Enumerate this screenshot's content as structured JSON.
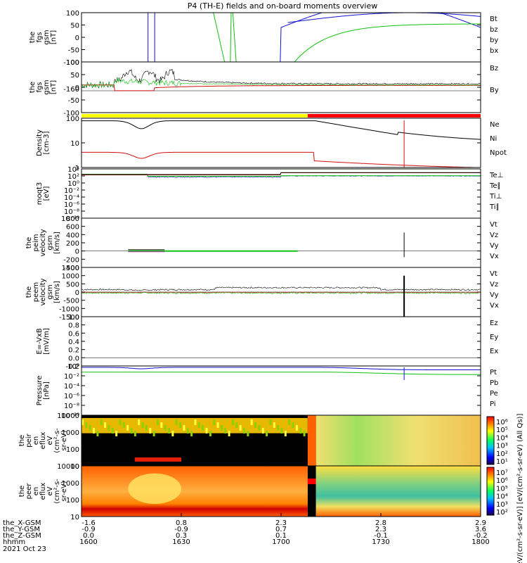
{
  "chart_data": {
    "type": "line",
    "title": "P4 (TH-E) fields and on-board moments overview",
    "x": {
      "rows": [
        {
          "name": "the_X-GSM",
          "values": [
            "-1.6",
            "0.8",
            "2.3",
            "2.8",
            "2.9"
          ]
        },
        {
          "name": "the_Y-GSM",
          "values": [
            "-0.9",
            "-0.9",
            "0.7",
            "2.3",
            "3.6"
          ]
        },
        {
          "name": "the_Z-GSM",
          "values": [
            "0.0",
            "0.3",
            "0.1",
            "-0.1",
            "-0.2"
          ]
        },
        {
          "name": "hhmm",
          "values": [
            "1600",
            "1630",
            "1700",
            "1730",
            "1800"
          ]
        }
      ],
      "date": "2021 Oct 23",
      "range_minutes": [
        0,
        120
      ]
    },
    "colors": {
      "black": "#000000",
      "red": "#d01010",
      "green": "#10c010",
      "blue": "#1010d0",
      "yellow": "#ffff00"
    },
    "panels": [
      {
        "key": "fgs",
        "ylabel": [
          "the",
          "fgs",
          "gsm",
          "[nT]"
        ],
        "ticks": [
          "100",
          "50",
          "0",
          "-50",
          "-100"
        ],
        "ylim": [
          -100,
          100
        ],
        "legend": [
          {
            "text": "Bt",
            "color": "#000000"
          },
          {
            "text": "bz",
            "color": "#d01010"
          },
          {
            "text": "by",
            "color": "#10c010"
          },
          {
            "text": "bx",
            "color": "#1010d0"
          }
        ]
      },
      {
        "key": "fgs2",
        "ylabel": [
          "the",
          "fgs",
          "gsm",
          "[nT]"
        ],
        "ticks": [
          "100",
          "50",
          "0",
          "-50",
          "-100"
        ],
        "ylim": [
          -120,
          100
        ],
        "overlap_label": "-160",
        "legend": [
          {
            "text": "Bz",
            "color": "#000000"
          },
          {
            "text": "By",
            "color": "#10c010"
          }
        ]
      },
      {
        "key": "density",
        "ylabel": [
          "Density",
          "[cm-3]"
        ],
        "ticks": [
          "100",
          "10",
          "1"
        ],
        "log": true,
        "ylim": [
          0.7,
          200
        ],
        "legend": [
          {
            "text": "Ne",
            "color": "#d01010"
          },
          {
            "text": "Ni",
            "color": "#000000"
          },
          {
            "text": "Npot",
            "color": "#1010d0"
          }
        ]
      },
      {
        "key": "temp",
        "ylabel": [
          "moqt3",
          "[eV]"
        ],
        "ticks": [
          "10⁴",
          "10²",
          "10⁰",
          "10⁻²",
          "10⁻⁴",
          "10⁻⁶",
          "10⁻⁸",
          "10⁻¹⁰"
        ],
        "log": true,
        "legend": [
          {
            "text": "Te⊥",
            "color": "#d01010"
          },
          {
            "text": "Te∥",
            "color": "#000000"
          },
          {
            "text": "Ti⊥",
            "color": "#1010d0"
          },
          {
            "text": "Ti∥",
            "color": "#10c010"
          }
        ]
      },
      {
        "key": "peimvel",
        "ylabel": [
          "the",
          "peim",
          "velocity",
          "gsm",
          "[km/s]"
        ],
        "ticks": [
          "800",
          "600",
          "400",
          "200",
          "0",
          "-200",
          "-400"
        ],
        "ylim": [
          -400,
          800
        ],
        "legend": [
          {
            "text": "Vt",
            "color": "#000000"
          },
          {
            "text": "Vz",
            "color": "#d01010"
          },
          {
            "text": "Vy",
            "color": "#10c010"
          },
          {
            "text": "Vx",
            "color": "#1010d0"
          }
        ]
      },
      {
        "key": "peemvel",
        "ylabel": [
          "the",
          "peem",
          "velocity",
          "gsm",
          "[km/s]"
        ],
        "ticks": [
          "1500",
          "1000",
          "500",
          "0",
          "-500",
          "-1000",
          "-1500"
        ],
        "ylim": [
          -1500,
          1500
        ],
        "legend": [
          {
            "text": "Vt",
            "color": "#000000"
          },
          {
            "text": "Vz",
            "color": "#d01010"
          },
          {
            "text": "Vy",
            "color": "#10c010"
          },
          {
            "text": "Vx",
            "color": "#1010d0"
          }
        ]
      },
      {
        "key": "efield",
        "ylabel": [
          "E=-VxB",
          "[mV/m]"
        ],
        "ticks": [
          "1.0",
          "0.8",
          "0.6",
          "0.4",
          "0.2",
          "0.0",
          "-0.2"
        ],
        "ylim": [
          -0.2,
          1.0
        ],
        "legend": [
          {
            "text": "Ez",
            "color": "#d01010"
          },
          {
            "text": "Ey",
            "color": "#10c010"
          },
          {
            "text": "Ex",
            "color": "#1010d0"
          }
        ]
      },
      {
        "key": "pressure",
        "ylabel": [
          "Pressure",
          "[nPa]"
        ],
        "ticks": [
          "10⁰",
          "10⁻²",
          "10⁻⁴",
          "10⁻⁶",
          "10⁻⁸",
          "10⁻¹⁰"
        ],
        "log": true,
        "legend": [
          {
            "text": "Pt",
            "color": "#000000"
          },
          {
            "text": "Pb",
            "color": "#d01010"
          },
          {
            "text": "Pe",
            "color": "#10c010"
          },
          {
            "text": "Pi",
            "color": "#1010d0"
          }
        ]
      },
      {
        "key": "peir_spec",
        "ylabel": [
          "the",
          "peir",
          "en",
          "eflux",
          "eV",
          "(cm²-s-",
          "sr-eV)"
        ],
        "ticks": [
          "10000",
          "1000",
          "100",
          "10"
        ],
        "log": true,
        "colorbar_ticks": [
          "10⁶",
          "10⁵",
          "10⁴",
          "10³",
          "10²",
          "10¹"
        ]
      },
      {
        "key": "peer_spec",
        "ylabel": [
          "the",
          "peer",
          "en",
          "eflux",
          "eV",
          "(cm²-s-",
          "sr-eV)"
        ],
        "ticks": [
          "10000",
          "1000",
          "100",
          "10"
        ],
        "log": true,
        "colorbar_ticks": [
          "10⁷",
          "10⁶",
          "10⁵",
          "10⁴",
          "10³",
          "10²"
        ]
      }
    ],
    "colorbar_label": "[eV/(cm²-s-sr-eV)]  [eV/(cm²-s-sr-eV) (All Qs)]"
  }
}
